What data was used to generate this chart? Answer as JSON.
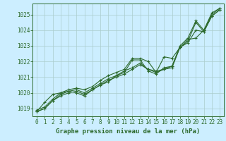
{
  "title": "Graphe pression niveau de la mer (hPa)",
  "background_color": "#cceeff",
  "grid_color": "#aacccc",
  "line_color": "#2d6a2d",
  "xlim": [
    -0.5,
    23.5
  ],
  "ylim": [
    1018.5,
    1025.7
  ],
  "yticks": [
    1019,
    1020,
    1021,
    1022,
    1023,
    1024,
    1025
  ],
  "xticks": [
    0,
    1,
    2,
    3,
    4,
    5,
    6,
    7,
    8,
    9,
    10,
    11,
    12,
    13,
    14,
    15,
    16,
    17,
    18,
    19,
    20,
    21,
    22,
    23
  ],
  "series": [
    [
      1018.8,
      1019.0,
      1019.5,
      1019.8,
      1020.0,
      1020.1,
      1019.9,
      1020.2,
      1020.5,
      1020.8,
      1021.0,
      1021.2,
      1021.5,
      1021.8,
      1021.5,
      1021.3,
      1021.5,
      1021.6,
      1022.9,
      1023.3,
      1024.5,
      1023.9,
      1024.9,
      1025.3
    ],
    [
      1018.8,
      1019.0,
      1019.5,
      1019.9,
      1020.1,
      1020.2,
      1020.0,
      1020.3,
      1020.6,
      1020.9,
      1021.1,
      1021.3,
      1022.1,
      1022.1,
      1021.4,
      1021.2,
      1021.6,
      1021.7,
      1023.0,
      1023.5,
      1024.6,
      1024.0,
      1025.0,
      1025.4
    ],
    [
      1018.9,
      1019.1,
      1019.6,
      1020.0,
      1020.2,
      1020.3,
      1020.2,
      1020.4,
      1020.8,
      1021.1,
      1021.3,
      1021.5,
      1022.2,
      1022.2,
      1022.0,
      1021.3,
      1022.3,
      1022.2,
      1022.9,
      1023.4,
      1023.5,
      1024.0,
      1025.1,
      1025.4
    ],
    [
      1018.8,
      1019.4,
      1019.9,
      1020.0,
      1020.1,
      1020.0,
      1019.8,
      1020.2,
      1020.5,
      1020.7,
      1021.1,
      1021.4,
      1021.6,
      1021.9,
      1021.5,
      1021.4,
      1021.5,
      1021.7,
      1022.9,
      1023.2,
      1024.0,
      1023.9,
      1024.9,
      1025.3
    ]
  ],
  "title_fontsize": 6.5,
  "tick_fontsize": 5.5
}
